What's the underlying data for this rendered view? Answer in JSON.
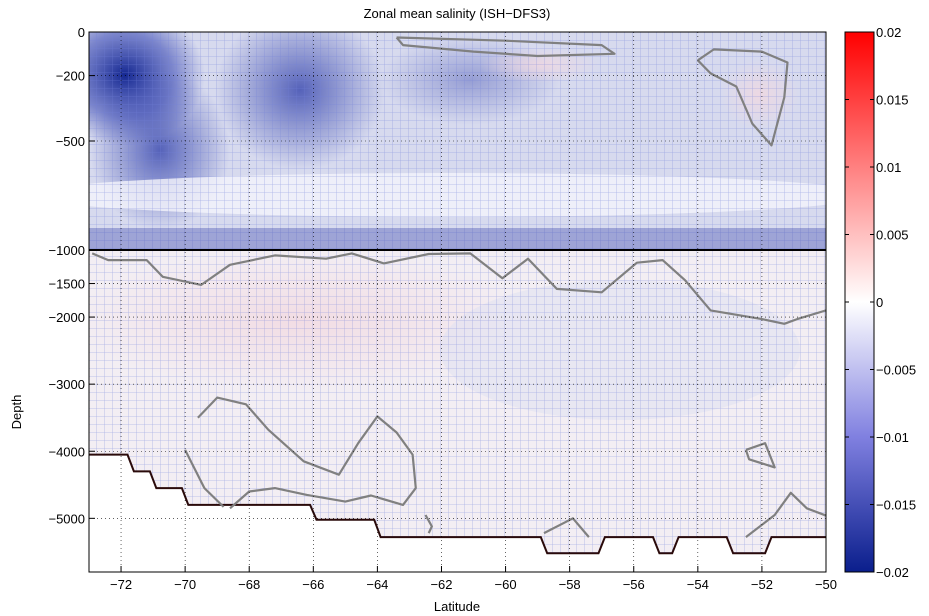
{
  "chart_data": {
    "type": "heatmap",
    "title": "Zonal mean salinity (ISH−DFS3)",
    "xlabel": "Latitude",
    "ylabel": "Depth",
    "xlim": [
      -73,
      -50
    ],
    "x_ticks": [
      -72,
      -70,
      -68,
      -66,
      -64,
      -62,
      -60,
      -58,
      -56,
      -54,
      -52,
      -50
    ],
    "x_tick_labels": [
      "−72",
      "−70",
      "−68",
      "−66",
      "−64",
      "−62",
      "−60",
      "−58",
      "−56",
      "−54",
      "−52",
      "−50"
    ],
    "upper_panel": {
      "ylim": [
        -1000,
        0
      ],
      "y_ticks": [
        0,
        -200,
        -500,
        -1000
      ],
      "y_tick_labels": [
        "0",
        "−200",
        "−500",
        "−1000"
      ]
    },
    "lower_panel": {
      "ylim": [
        -5800,
        -1000
      ],
      "y_ticks": [
        -1500,
        -2000,
        -3000,
        -4000,
        -5000
      ],
      "y_tick_labels": [
        "−1500",
        "−2000",
        "−3000",
        "−4000",
        "−5000"
      ]
    },
    "colorbar": {
      "range": [
        -0.02,
        0.02
      ],
      "ticks": [
        0.02,
        0.015,
        0.01,
        0.005,
        0,
        -0.005,
        -0.01,
        -0.015,
        -0.02
      ],
      "tick_labels": [
        "0.02",
        "0.015",
        "0.01",
        "0.005",
        "0",
        "−0.005",
        "−0.01",
        "−0.015",
        "−0.02"
      ],
      "colormap": "blue-white-red",
      "low_color": "#0a1e8c",
      "high_color": "#ff0000"
    },
    "grid": "dotted",
    "zero_contour_color": "#808080",
    "bathymetry": [
      [
        -73,
        -4050
      ],
      [
        -71.8,
        -4050
      ],
      [
        -71.6,
        -4300
      ],
      [
        -71.1,
        -4300
      ],
      [
        -70.9,
        -4550
      ],
      [
        -70.1,
        -4550
      ],
      [
        -69.9,
        -4800
      ],
      [
        -66.1,
        -4800
      ],
      [
        -65.9,
        -5020
      ],
      [
        -64.1,
        -5020
      ],
      [
        -63.9,
        -5280
      ],
      [
        -58.9,
        -5280
      ],
      [
        -58.7,
        -5520
      ],
      [
        -57.1,
        -5520
      ],
      [
        -56.9,
        -5280
      ],
      [
        -55.4,
        -5280
      ],
      [
        -55.2,
        -5520
      ],
      [
        -54.8,
        -5520
      ],
      [
        -54.6,
        -5280
      ],
      [
        -53.1,
        -5280
      ],
      [
        -52.9,
        -5520
      ],
      [
        -51.9,
        -5520
      ],
      [
        -51.7,
        -5280
      ],
      [
        -50,
        -5280
      ]
    ],
    "zero_contours_upper": [
      [
        [
          -63.4,
          -25
        ],
        [
          -60,
          -40
        ],
        [
          -57,
          -60
        ],
        [
          -56.6,
          -100
        ],
        [
          -59,
          -110
        ],
        [
          -61,
          -90
        ],
        [
          -63.2,
          -60
        ],
        [
          -63.4,
          -25
        ]
      ],
      [
        [
          -54.0,
          -130
        ],
        [
          -53.5,
          -80
        ],
        [
          -52,
          -90
        ],
        [
          -51.2,
          -140
        ],
        [
          -51.3,
          -300
        ],
        [
          -51.7,
          -520
        ],
        [
          -52.3,
          -420
        ],
        [
          -52.8,
          -250
        ],
        [
          -53.6,
          -190
        ],
        [
          -54.0,
          -130
        ]
      ]
    ],
    "zero_contours_lower": [
      [
        [
          -72.9,
          -1050
        ],
        [
          -72.4,
          -1150
        ],
        [
          -71.2,
          -1150
        ],
        [
          -70.7,
          -1400
        ],
        [
          -69.5,
          -1520
        ],
        [
          -68.6,
          -1220
        ],
        [
          -67.2,
          -1080
        ],
        [
          -65.6,
          -1130
        ],
        [
          -64.8,
          -1050
        ],
        [
          -63.8,
          -1200
        ],
        [
          -62.4,
          -1060
        ],
        [
          -61.1,
          -1050
        ],
        [
          -60.1,
          -1420
        ],
        [
          -59.3,
          -1130
        ],
        [
          -58.4,
          -1580
        ],
        [
          -57.0,
          -1630
        ],
        [
          -55.9,
          -1190
        ],
        [
          -55.1,
          -1150
        ],
        [
          -54.4,
          -1450
        ],
        [
          -53.6,
          -1900
        ],
        [
          -52.0,
          -2030
        ],
        [
          -51.3,
          -2100
        ],
        [
          -50.9,
          -2030
        ],
        [
          -50.0,
          -1900
        ]
      ],
      [
        [
          -70.0,
          -3980
        ],
        [
          -69.4,
          -4550
        ],
        [
          -68.8,
          -4830
        ]
      ],
      [
        [
          -69.6,
          -3500
        ],
        [
          -69.0,
          -3200
        ],
        [
          -68.1,
          -3300
        ],
        [
          -67.4,
          -3680
        ],
        [
          -66.3,
          -4150
        ],
        [
          -65.2,
          -4350
        ],
        [
          -64.6,
          -3880
        ],
        [
          -64.0,
          -3480
        ],
        [
          -63.4,
          -3720
        ],
        [
          -62.9,
          -4050
        ],
        [
          -62.8,
          -4550
        ],
        [
          -63.2,
          -4800
        ],
        [
          -64.2,
          -4660
        ],
        [
          -65.0,
          -4750
        ],
        [
          -66.2,
          -4650
        ],
        [
          -67.2,
          -4550
        ],
        [
          -68.0,
          -4600
        ],
        [
          -68.6,
          -4850
        ]
      ],
      [
        [
          -62.4,
          -5220
        ],
        [
          -62.3,
          -5120
        ],
        [
          -62.5,
          -4950
        ]
      ],
      [
        [
          -58.8,
          -5220
        ],
        [
          -57.9,
          -5000
        ],
        [
          -57.4,
          -5280
        ]
      ],
      [
        [
          -52.5,
          -3980
        ],
        [
          -51.9,
          -3880
        ],
        [
          -51.6,
          -4240
        ],
        [
          -52.4,
          -4120
        ],
        [
          -52.5,
          -3980
        ]
      ],
      [
        [
          -52.5,
          -5280
        ],
        [
          -51.6,
          -4950
        ],
        [
          -51.1,
          -4620
        ],
        [
          -50.6,
          -4850
        ],
        [
          -50.0,
          -4960
        ]
      ]
    ]
  }
}
